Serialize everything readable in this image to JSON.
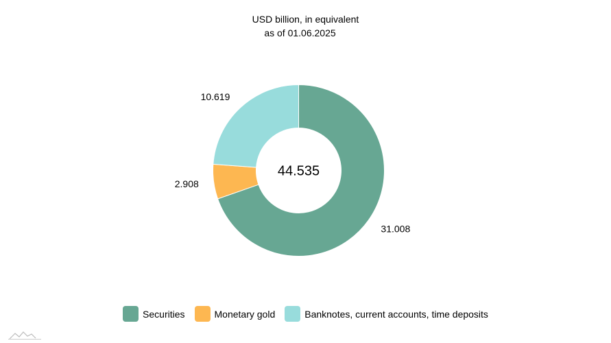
{
  "chart_data": {
    "type": "pie",
    "donut": true,
    "title_line1": "USD billion, in equivalent",
    "title_line2": "as of 01.06.2025",
    "center_label": "44.535",
    "categories": [
      "Securities",
      "Monetary gold",
      "Banknotes, current accounts, time deposits"
    ],
    "values": [
      31.008,
      2.908,
      10.619
    ],
    "value_labels": [
      "31.008",
      "2.908",
      "10.619"
    ],
    "colors": [
      "#67a793",
      "#fdb751",
      "#98dcdc"
    ],
    "legend_position": "bottom"
  }
}
